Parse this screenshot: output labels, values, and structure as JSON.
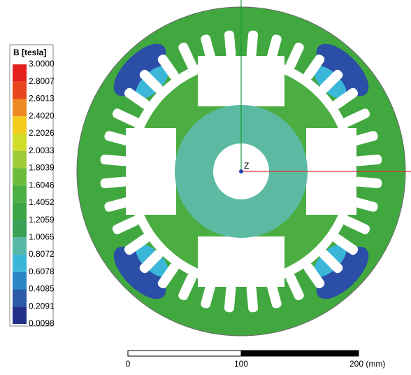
{
  "legend": {
    "title": "B [tesla]",
    "labels": [
      "3.0000",
      "2.8007",
      "2.6013",
      "2.4020",
      "2.2026",
      "2.0033",
      "1.8039",
      "1.6046",
      "1.4052",
      "1.2059",
      "1.0065",
      "0.8072",
      "0.6078",
      "0.4085",
      "0.2091",
      "0.0098"
    ],
    "colors": [
      "#e3201c",
      "#e8461e",
      "#ee8a22",
      "#f3cc1d",
      "#d2dc2a",
      "#9fcc3a",
      "#6cbc3c",
      "#4caf45",
      "#3ea547",
      "#3aa055",
      "#56b9a8",
      "#3ab7d8",
      "#2b86c7",
      "#2b5aa6",
      "#23308a"
    ]
  },
  "axis_label": "Z",
  "scale_bar": {
    "labels": [
      "0",
      "100",
      "200 (mm)"
    ]
  }
}
